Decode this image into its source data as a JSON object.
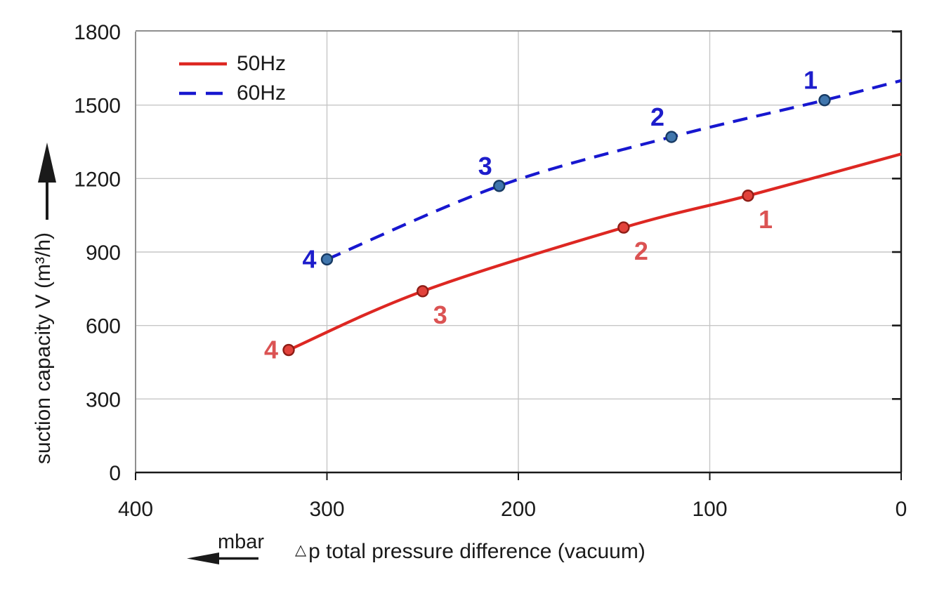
{
  "chart_data": {
    "type": "line",
    "title": "",
    "ylabel": "suction capacity V (m³/h)",
    "xlabel_delta": "△",
    "xlabel_text": "p total pressure difference (vacuum)",
    "x_unit": "mbar",
    "x_ticks": [
      400,
      300,
      200,
      100,
      0
    ],
    "y_ticks": [
      0,
      300,
      600,
      900,
      1200,
      1500,
      1800
    ],
    "xlim": [
      400,
      0
    ],
    "ylim": [
      0,
      1800
    ],
    "x_axis_reversed": true,
    "grid": true,
    "legend_position": "inside-top-left",
    "colors": {
      "grid": "#c6c6c6",
      "frame_gray": "#8f8f8f",
      "axis_black": "#1a1a1a",
      "tick_text": "#1a1a1a"
    },
    "series": [
      {
        "name": "50Hz",
        "frequency_hz": 50,
        "line_style": "solid",
        "color": "#dd2722",
        "marker_fill": "#e2423b",
        "marker_stroke": "#8e1d16",
        "label_color": "#db5353",
        "points": [
          {
            "x": 320,
            "y": 500,
            "label": "4",
            "label_pos": "left"
          },
          {
            "x": 250,
            "y": 740,
            "label": "3",
            "label_pos": "below-right"
          },
          {
            "x": 145,
            "y": 1000,
            "label": "2",
            "label_pos": "below-right"
          },
          {
            "x": 80,
            "y": 1130,
            "label": "1",
            "label_pos": "below-right"
          },
          {
            "x": 0,
            "y": 1300
          }
        ]
      },
      {
        "name": "60Hz",
        "frequency_hz": 60,
        "line_style": "dashed",
        "color": "#1717cf",
        "marker_fill": "#4076ad",
        "marker_stroke": "#173a63",
        "label_color": "#1d1dcb",
        "points": [
          {
            "x": 300,
            "y": 870,
            "label": "4",
            "label_pos": "left"
          },
          {
            "x": 210,
            "y": 1170,
            "label": "3",
            "label_pos": "above-left"
          },
          {
            "x": 120,
            "y": 1370,
            "label": "2",
            "label_pos": "above-left"
          },
          {
            "x": 40,
            "y": 1520,
            "label": "1",
            "label_pos": "above-left"
          },
          {
            "x": 0,
            "y": 1600
          }
        ]
      }
    ]
  }
}
